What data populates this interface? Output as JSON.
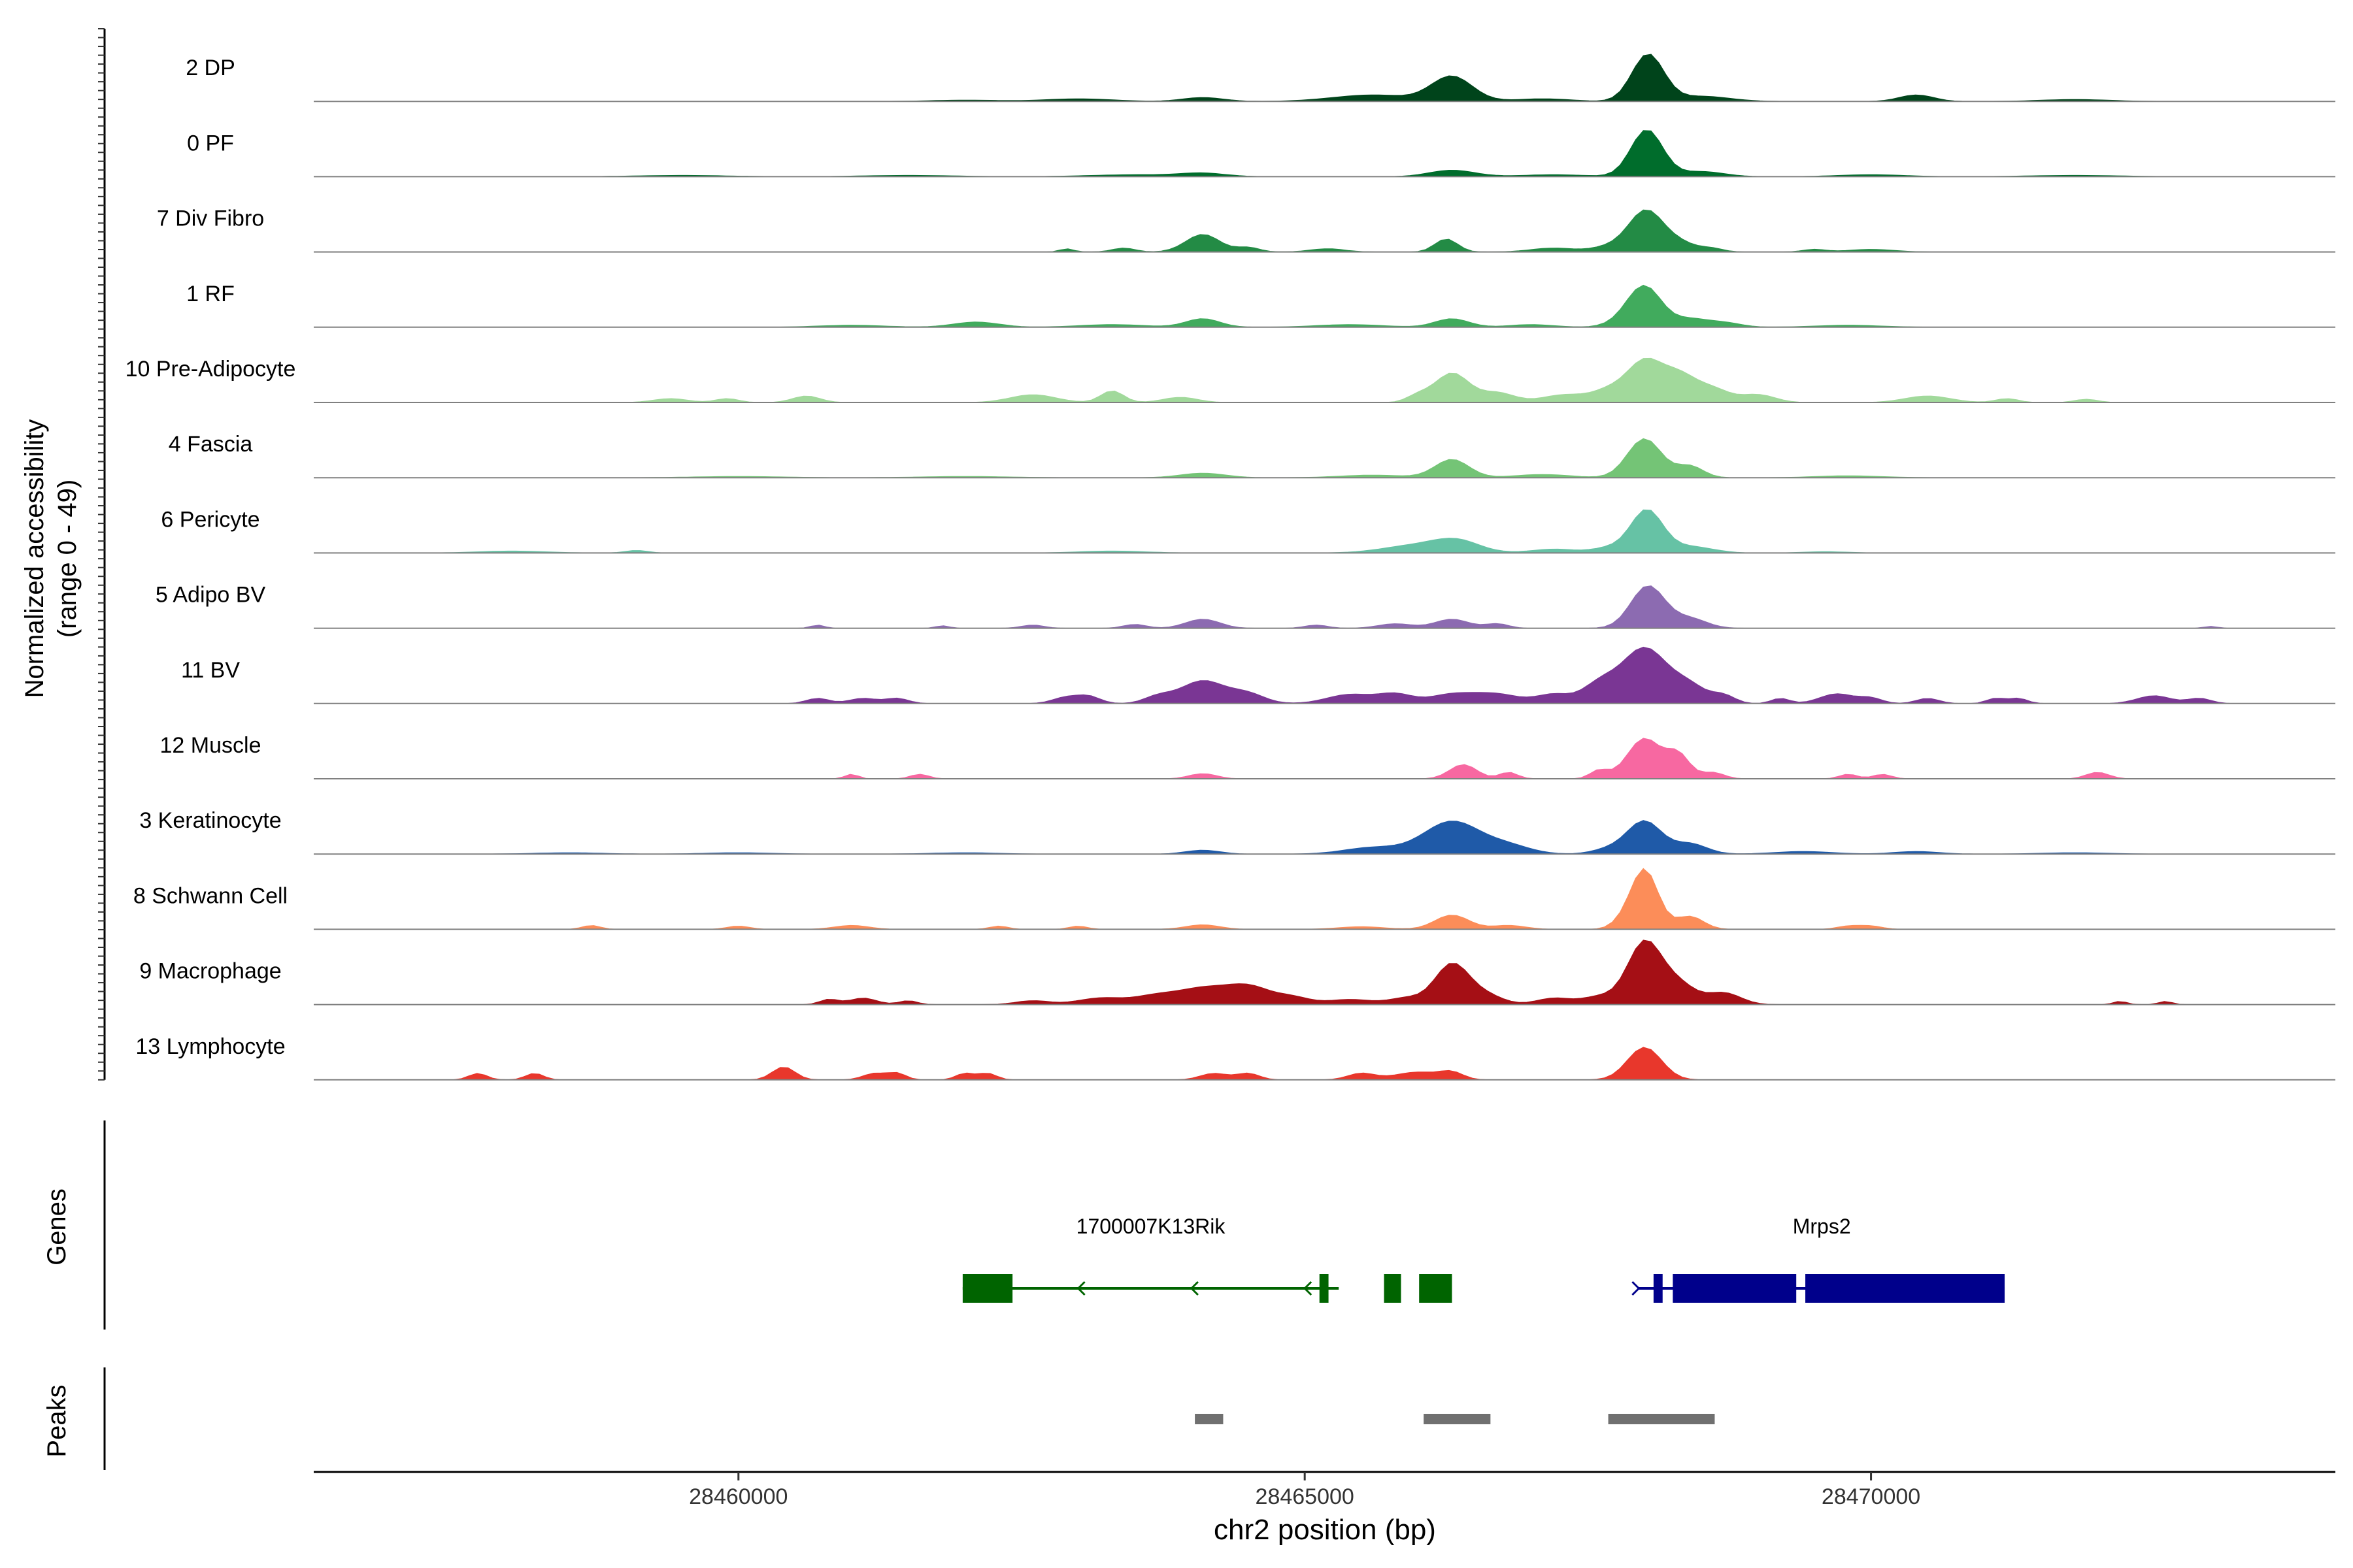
{
  "chart_data": {
    "type": "area",
    "title": "",
    "xlabel": "chr2 position (bp)",
    "ylabel": [
      "Normalized accessibility",
      "(range 0 - 49)"
    ],
    "xlim": [
      28456250,
      28474100
    ],
    "ylim": [
      0,
      49
    ],
    "x_ticks": [
      28460000,
      28465000,
      28470000
    ],
    "x_tick_labels": [
      "28460000",
      "28465000",
      "28470000"
    ],
    "series": [
      {
        "name": "2 DP",
        "color": "#00441b",
        "peaks": [
          [
            28462000,
            0.02,
            300
          ],
          [
            28463000,
            0.04,
            300
          ],
          [
            28464100,
            0.06,
            180
          ],
          [
            28465600,
            0.1,
            350
          ],
          [
            28466300,
            0.38,
            180
          ],
          [
            28467100,
            0.04,
            250
          ],
          [
            28468030,
            0.72,
            140
          ],
          [
            28468500,
            0.08,
            250
          ],
          [
            28470400,
            0.1,
            150
          ],
          [
            28471800,
            0.03,
            300
          ]
        ]
      },
      {
        "name": "0 PF",
        "color": "#006d2c",
        "peaks": [
          [
            28459500,
            0.02,
            400
          ],
          [
            28461500,
            0.02,
            400
          ],
          [
            28463500,
            0.03,
            400
          ],
          [
            28464100,
            0.05,
            200
          ],
          [
            28466300,
            0.1,
            200
          ],
          [
            28467200,
            0.03,
            300
          ],
          [
            28468020,
            0.72,
            140
          ],
          [
            28468500,
            0.08,
            200
          ],
          [
            28470000,
            0.03,
            300
          ],
          [
            28471800,
            0.02,
            400
          ]
        ]
      },
      {
        "name": "7 Div Fibro",
        "color": "#238b45",
        "peaks": [
          [
            28462900,
            0.05,
            60
          ],
          [
            28463400,
            0.06,
            100
          ],
          [
            28464100,
            0.27,
            150
          ],
          [
            28464500,
            0.07,
            100
          ],
          [
            28465200,
            0.05,
            150
          ],
          [
            28466250,
            0.2,
            100
          ],
          [
            28467200,
            0.06,
            200
          ],
          [
            28467700,
            0.08,
            150
          ],
          [
            28468010,
            0.62,
            150
          ],
          [
            28468300,
            0.14,
            150
          ],
          [
            28468600,
            0.05,
            100
          ],
          [
            28469500,
            0.04,
            100
          ],
          [
            28470000,
            0.04,
            200
          ]
        ]
      },
      {
        "name": "1 RF",
        "color": "#41ab5d",
        "peaks": [
          [
            28461000,
            0.03,
            300
          ],
          [
            28462100,
            0.08,
            200
          ],
          [
            28463300,
            0.04,
            300
          ],
          [
            28464100,
            0.13,
            150
          ],
          [
            28465400,
            0.04,
            300
          ],
          [
            28466300,
            0.13,
            150
          ],
          [
            28467000,
            0.04,
            200
          ],
          [
            28467800,
            0.05,
            150
          ],
          [
            28468000,
            0.62,
            150
          ],
          [
            28468400,
            0.12,
            150
          ],
          [
            28468700,
            0.07,
            150
          ],
          [
            28469800,
            0.03,
            300
          ]
        ]
      },
      {
        "name": "10 Pre-Adipocyte",
        "color": "#a1d99b",
        "peaks": [
          [
            28459400,
            0.06,
            150
          ],
          [
            28459900,
            0.06,
            100
          ],
          [
            28460600,
            0.1,
            120
          ],
          [
            28462600,
            0.12,
            200
          ],
          [
            28463300,
            0.18,
            100
          ],
          [
            28463900,
            0.08,
            150
          ],
          [
            28466000,
            0.1,
            100
          ],
          [
            28466300,
            0.45,
            150
          ],
          [
            28466700,
            0.15,
            150
          ],
          [
            28467300,
            0.12,
            200
          ],
          [
            28467700,
            0.18,
            150
          ],
          [
            28468000,
            0.6,
            150
          ],
          [
            28468300,
            0.4,
            150
          ],
          [
            28468600,
            0.2,
            150
          ],
          [
            28469000,
            0.12,
            150
          ],
          [
            28470500,
            0.1,
            200
          ],
          [
            28471200,
            0.06,
            100
          ],
          [
            28471900,
            0.05,
            100
          ]
        ]
      },
      {
        "name": "4 Fascia",
        "color": "#74c476",
        "peaks": [
          [
            28460000,
            0.02,
            400
          ],
          [
            28462000,
            0.02,
            400
          ],
          [
            28464100,
            0.07,
            200
          ],
          [
            28465600,
            0.04,
            300
          ],
          [
            28466300,
            0.28,
            150
          ],
          [
            28467100,
            0.05,
            250
          ],
          [
            28468000,
            0.6,
            150
          ],
          [
            28468400,
            0.18,
            120
          ],
          [
            28469800,
            0.03,
            300
          ]
        ]
      },
      {
        "name": "6 Pericyte",
        "color": "#66c2a5",
        "peaks": [
          [
            28458000,
            0.03,
            300
          ],
          [
            28459100,
            0.04,
            100
          ],
          [
            28463300,
            0.03,
            300
          ],
          [
            28466000,
            0.12,
            300
          ],
          [
            28466350,
            0.16,
            200
          ],
          [
            28467200,
            0.06,
            200
          ],
          [
            28467700,
            0.08,
            150
          ],
          [
            28468020,
            0.65,
            140
          ],
          [
            28468400,
            0.1,
            200
          ],
          [
            28469600,
            0.02,
            200
          ]
        ]
      },
      {
        "name": "5 Adipo BV",
        "color": "#8c6bb1",
        "peaks": [
          [
            28460700,
            0.05,
            60
          ],
          [
            28461800,
            0.04,
            60
          ],
          [
            28462600,
            0.05,
            100
          ],
          [
            28463500,
            0.06,
            100
          ],
          [
            28464100,
            0.14,
            150
          ],
          [
            28465100,
            0.05,
            100
          ],
          [
            28465800,
            0.07,
            150
          ],
          [
            28466300,
            0.14,
            150
          ],
          [
            28466700,
            0.07,
            100
          ],
          [
            28468030,
            0.65,
            150
          ],
          [
            28468400,
            0.15,
            150
          ],
          [
            28473000,
            0.03,
            60
          ]
        ]
      },
      {
        "name": "11 BV",
        "color": "#7a3694",
        "peaks": [
          [
            28460700,
            0.08,
            100
          ],
          [
            28461100,
            0.08,
            120
          ],
          [
            28461400,
            0.08,
            100
          ],
          [
            28462900,
            0.1,
            120
          ],
          [
            28463100,
            0.1,
            100
          ],
          [
            28463700,
            0.1,
            120
          ],
          [
            28464100,
            0.35,
            200
          ],
          [
            28464500,
            0.14,
            150
          ],
          [
            28465400,
            0.14,
            200
          ],
          [
            28465800,
            0.14,
            150
          ],
          [
            28466300,
            0.14,
            200
          ],
          [
            28466700,
            0.14,
            200
          ],
          [
            28467200,
            0.14,
            150
          ],
          [
            28467600,
            0.28,
            150
          ],
          [
            28468000,
            0.85,
            200
          ],
          [
            28468400,
            0.25,
            150
          ],
          [
            28468700,
            0.12,
            100
          ],
          [
            28469200,
            0.08,
            80
          ],
          [
            28469700,
            0.15,
            150
          ],
          [
            28470000,
            0.08,
            100
          ],
          [
            28470500,
            0.08,
            100
          ],
          [
            28471100,
            0.08,
            80
          ],
          [
            28471300,
            0.08,
            80
          ],
          [
            28472500,
            0.12,
            150
          ],
          [
            28472900,
            0.08,
            100
          ]
        ]
      },
      {
        "name": "12 Muscle",
        "color": "#f768a1",
        "peaks": [
          [
            28461000,
            0.07,
            60
          ],
          [
            28461600,
            0.07,
            80
          ],
          [
            28464100,
            0.08,
            120
          ],
          [
            28466400,
            0.22,
            120
          ],
          [
            28466800,
            0.1,
            80
          ],
          [
            28467600,
            0.13,
            80
          ],
          [
            28468000,
            0.62,
            150
          ],
          [
            28468300,
            0.35,
            100
          ],
          [
            28468600,
            0.1,
            100
          ],
          [
            28469800,
            0.07,
            80
          ],
          [
            28470100,
            0.07,
            80
          ],
          [
            28472000,
            0.1,
            100
          ]
        ]
      },
      {
        "name": "3 Keratinocyte",
        "color": "#1f5aa8",
        "peaks": [
          [
            28458500,
            0.02,
            300
          ],
          [
            28460000,
            0.02,
            300
          ],
          [
            28462000,
            0.02,
            300
          ],
          [
            28464100,
            0.06,
            150
          ],
          [
            28465600,
            0.1,
            250
          ],
          [
            28466300,
            0.5,
            250
          ],
          [
            28466800,
            0.12,
            200
          ],
          [
            28467700,
            0.08,
            150
          ],
          [
            28468000,
            0.5,
            150
          ],
          [
            28468400,
            0.16,
            150
          ],
          [
            28469400,
            0.04,
            250
          ],
          [
            28470400,
            0.04,
            200
          ],
          [
            28471800,
            0.02,
            300
          ]
        ]
      },
      {
        "name": "8 Schwann Cell",
        "color": "#fc8d59",
        "peaks": [
          [
            28458700,
            0.06,
            80
          ],
          [
            28460000,
            0.05,
            100
          ],
          [
            28461000,
            0.06,
            150
          ],
          [
            28462300,
            0.05,
            80
          ],
          [
            28463000,
            0.05,
            80
          ],
          [
            28464100,
            0.07,
            150
          ],
          [
            28465500,
            0.04,
            200
          ],
          [
            28466300,
            0.22,
            150
          ],
          [
            28466800,
            0.06,
            150
          ],
          [
            28467800,
            0.08,
            100
          ],
          [
            28468000,
            0.92,
            120
          ],
          [
            28468400,
            0.2,
            120
          ],
          [
            28469800,
            0.05,
            100
          ],
          [
            28470000,
            0.05,
            100
          ]
        ]
      },
      {
        "name": "9 Macrophage",
        "color": "#a50f15",
        "peaks": [
          [
            28460800,
            0.08,
            80
          ],
          [
            28461100,
            0.1,
            120
          ],
          [
            28461500,
            0.06,
            80
          ],
          [
            28462600,
            0.06,
            150
          ],
          [
            28463200,
            0.1,
            200
          ],
          [
            28463700,
            0.14,
            200
          ],
          [
            28464100,
            0.22,
            200
          ],
          [
            28464500,
            0.28,
            200
          ],
          [
            28464900,
            0.1,
            150
          ],
          [
            28465400,
            0.08,
            200
          ],
          [
            28465900,
            0.1,
            150
          ],
          [
            28466300,
            0.62,
            150
          ],
          [
            28466600,
            0.14,
            150
          ],
          [
            28467200,
            0.1,
            150
          ],
          [
            28467600,
            0.12,
            150
          ],
          [
            28468000,
            0.95,
            150
          ],
          [
            28468300,
            0.3,
            150
          ],
          [
            28468700,
            0.18,
            150
          ],
          [
            28472200,
            0.05,
            60
          ],
          [
            28472600,
            0.05,
            60
          ]
        ]
      },
      {
        "name": "13 Lymphocyte",
        "color": "#e8372c",
        "peaks": [
          [
            28457700,
            0.1,
            80
          ],
          [
            28458200,
            0.1,
            80
          ],
          [
            28460400,
            0.2,
            100
          ],
          [
            28461200,
            0.1,
            100
          ],
          [
            28461400,
            0.1,
            80
          ],
          [
            28462000,
            0.1,
            80
          ],
          [
            28462200,
            0.1,
            80
          ],
          [
            28464200,
            0.1,
            120
          ],
          [
            28464500,
            0.1,
            100
          ],
          [
            28465500,
            0.1,
            120
          ],
          [
            28466000,
            0.12,
            200
          ],
          [
            28466300,
            0.1,
            100
          ],
          [
            28468000,
            0.5,
            150
          ]
        ]
      }
    ],
    "genes": [
      {
        "name": "1700007K13Rik",
        "start": 28461980,
        "end": 28465300,
        "strand": "-",
        "color": "#006400",
        "exons": [
          [
            28461980,
            28462420
          ],
          [
            28465130,
            28465210
          ],
          [
            28465700,
            28465850
          ],
          [
            28466010,
            28466300
          ]
        ],
        "arrows": [
          28463000,
          28464000,
          28465000
        ]
      },
      {
        "name": "Mrps2",
        "start": 28467950,
        "end": 28471180,
        "strand": "+",
        "color": "#00008b",
        "exons": [
          [
            28468080,
            28468160
          ],
          [
            28468250,
            28469340
          ],
          [
            28469420,
            28471180
          ]
        ],
        "arrows": [
          28467950
        ]
      }
    ],
    "peaks": [
      [
        28464030,
        28464280
      ],
      [
        28466050,
        28466640
      ],
      [
        28467680,
        28468620
      ]
    ],
    "track_labels": [
      "Genes",
      "Peaks"
    ]
  }
}
